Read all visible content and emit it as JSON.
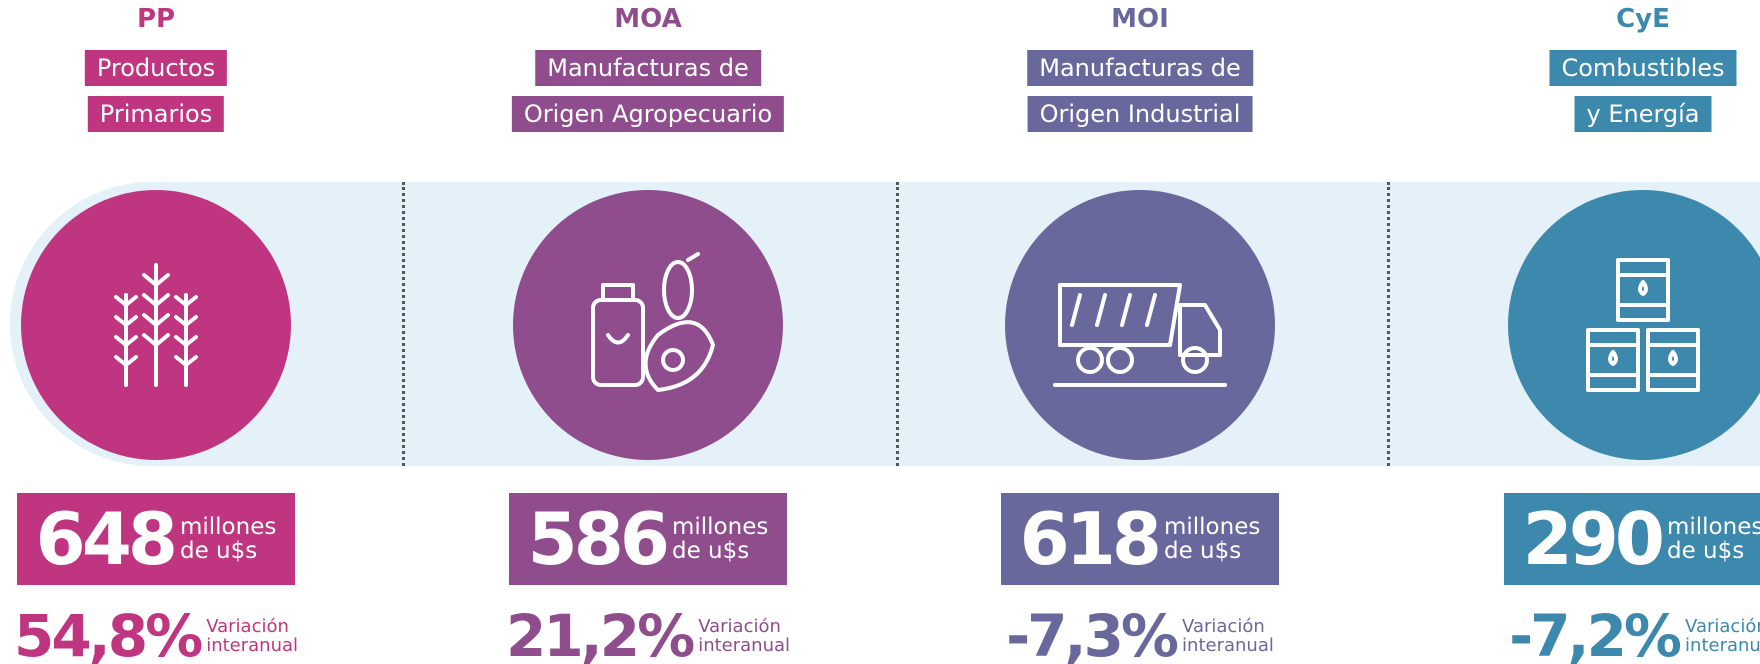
{
  "columns": [
    {
      "code": "PP",
      "name": [
        "Productos",
        "Primarios"
      ],
      "value": "648",
      "unit": [
        "millones",
        "de u$s"
      ],
      "variation": "54,8%",
      "variation_label": [
        "Variación",
        "interanual"
      ],
      "color": "#c0357f"
    },
    {
      "code": "MOA",
      "name": [
        "Manufacturas de",
        "Origen Agropecuario"
      ],
      "value": "586",
      "unit": [
        "millones",
        "de u$s"
      ],
      "variation": "21,2%",
      "variation_label": [
        "Variación",
        "interanual"
      ],
      "color": "#8f4d8e"
    },
    {
      "code": "MOI",
      "name": [
        "Manufacturas de",
        "Origen Industrial"
      ],
      "value": "618",
      "unit": [
        "millones",
        "de u$s"
      ],
      "variation": "-7,3%",
      "variation_label": [
        "Variación",
        "interanual"
      ],
      "color": "#69689d"
    },
    {
      "code": "CyE",
      "name": [
        "Combustibles",
        "y Energía"
      ],
      "value": "290",
      "unit": [
        "millones",
        "de u$s"
      ],
      "variation": "-7,2%",
      "variation_label": [
        "Variación",
        "interanual"
      ],
      "color": "#3d88ad"
    }
  ]
}
